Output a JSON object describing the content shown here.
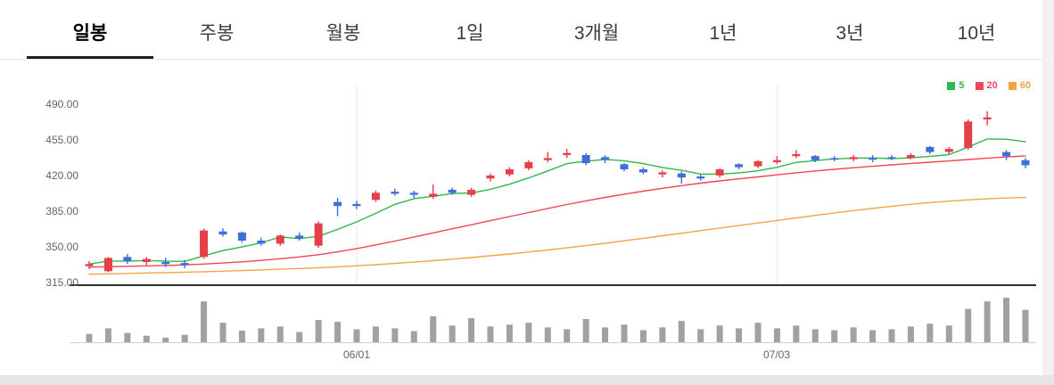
{
  "tabs": [
    {
      "label": "일봉",
      "active": true
    },
    {
      "label": "주봉",
      "active": false
    },
    {
      "label": "월봉",
      "active": false
    },
    {
      "label": "1일",
      "active": false
    },
    {
      "label": "3개월",
      "active": false
    },
    {
      "label": "1년",
      "active": false
    },
    {
      "label": "3년",
      "active": false
    },
    {
      "label": "10년",
      "active": false
    }
  ],
  "chart_data": {
    "type": "candlestick",
    "title": "Daily stock price candlestick chart with volume",
    "y_ticks": [
      "490.00",
      "455.00",
      "420.00",
      "385.00",
      "350.00",
      "315.00"
    ],
    "y_tick_values": [
      490,
      455,
      420,
      385,
      350,
      315
    ],
    "ylim": [
      315,
      510
    ],
    "x_labels": [
      {
        "label": "06/01",
        "index": 14
      },
      {
        "label": "07/03",
        "index": 36
      }
    ],
    "legend": [
      {
        "label": "5",
        "color": "#2db84c"
      },
      {
        "label": "20",
        "color": "#ef4656"
      },
      {
        "label": "60",
        "color": "#f2a445"
      }
    ],
    "colors": {
      "up": "#e5404a",
      "down": "#3e6fd9",
      "volume": "#a0a0a5",
      "grid": "#e9e9e9",
      "axis": "#2f2f2f",
      "baseline": "#cfcfcf"
    },
    "candles_format": [
      "open",
      "high",
      "low",
      "close"
    ],
    "candles": [
      [
        332,
        337,
        329,
        334
      ],
      [
        327,
        341,
        326,
        340
      ],
      [
        341,
        344,
        334,
        337
      ],
      [
        336,
        341,
        333,
        339
      ],
      [
        336,
        340,
        331,
        334
      ],
      [
        335,
        338,
        330,
        333
      ],
      [
        341,
        369,
        339,
        367
      ],
      [
        366,
        369,
        361,
        363
      ],
      [
        365,
        366,
        355,
        357
      ],
      [
        357,
        360,
        352,
        354
      ],
      [
        354,
        363,
        352,
        362
      ],
      [
        362,
        365,
        357,
        359
      ],
      [
        352,
        376,
        350,
        374
      ],
      [
        395,
        399,
        381,
        391
      ],
      [
        393,
        396,
        388,
        391
      ],
      [
        397,
        406,
        395,
        404
      ],
      [
        405,
        408,
        401,
        403
      ],
      [
        404,
        406,
        399,
        402
      ],
      [
        400,
        412,
        398,
        403
      ],
      [
        407,
        409,
        402,
        404
      ],
      [
        402,
        409,
        400,
        407
      ],
      [
        418,
        423,
        415,
        421
      ],
      [
        422,
        429,
        420,
        427
      ],
      [
        428,
        436,
        426,
        434
      ],
      [
        436,
        444,
        434,
        438
      ],
      [
        441,
        447,
        438,
        443
      ],
      [
        441,
        443,
        431,
        433
      ],
      [
        439,
        441,
        433,
        436
      ],
      [
        432,
        433,
        425,
        427
      ],
      [
        427,
        429,
        422,
        424
      ],
      [
        422,
        426,
        419,
        424
      ],
      [
        423,
        425,
        413,
        419
      ],
      [
        420,
        422,
        416,
        418
      ],
      [
        421,
        428,
        419,
        427
      ],
      [
        432,
        433,
        427,
        429
      ],
      [
        430,
        436,
        428,
        435
      ],
      [
        434,
        440,
        432,
        436
      ],
      [
        440,
        446,
        438,
        442
      ],
      [
        440,
        441,
        434,
        436
      ],
      [
        438,
        440,
        435,
        437
      ],
      [
        437,
        441,
        435,
        439
      ],
      [
        438,
        441,
        434,
        437
      ],
      [
        439,
        441,
        436,
        438
      ],
      [
        438,
        443,
        437,
        441
      ],
      [
        449,
        450,
        442,
        444
      ],
      [
        444,
        449,
        442,
        447
      ],
      [
        448,
        476,
        446,
        474
      ],
      [
        476,
        484,
        470,
        478
      ],
      [
        444,
        446,
        436,
        440
      ],
      [
        436,
        438,
        428,
        431
      ]
    ],
    "series": [
      {
        "name": "MA5",
        "color": "#2db84c",
        "values": [
          334,
          337,
          337,
          337.5,
          336.8,
          336.6,
          342,
          347.2,
          350.8,
          354.8,
          360.6,
          359,
          361.2,
          368,
          375.4,
          383.8,
          392.6,
          398.2,
          400.6,
          403.2,
          403.8,
          407.4,
          412.4,
          418.6,
          425.4,
          432.6,
          435,
          436.8,
          435.4,
          432.6,
          428.8,
          426,
          422.4,
          422.4,
          423.4,
          425.6,
          429,
          433.8,
          435.6,
          437.2,
          438,
          438.2,
          437.4,
          438.4,
          439.8,
          441.4,
          448.8,
          456.8,
          456.6,
          454
        ]
      },
      {
        "name": "MA20",
        "color": "#ef4656",
        "values": [
          331,
          331.4,
          331.8,
          332.2,
          332.6,
          333.2,
          334,
          335,
          336.2,
          337.6,
          339.2,
          341,
          343.2,
          346,
          349.2,
          352.8,
          356.6,
          360.6,
          364.6,
          368.6,
          372.6,
          376.6,
          380.6,
          384.6,
          388.6,
          392.4,
          396,
          399.4,
          402.6,
          405.6,
          408.4,
          411,
          413.4,
          415.6,
          417.6,
          419.6,
          421.6,
          423.6,
          425.4,
          427,
          428.6,
          430,
          431.4,
          432.8,
          434,
          435.2,
          436.6,
          438,
          439.2,
          440.2
        ]
      },
      {
        "name": "MA60",
        "color": "#f2a445",
        "values": [
          324,
          324.4,
          324.8,
          325.2,
          325.6,
          326,
          326.5,
          327,
          327.6,
          328.2,
          328.9,
          329.6,
          330.4,
          331.3,
          332.3,
          333.4,
          334.6,
          335.9,
          337.3,
          338.8,
          340.4,
          342.1,
          343.9,
          345.8,
          347.8,
          349.9,
          352.1,
          354.4,
          356.8,
          359.3,
          361.8,
          364.3,
          366.8,
          369.3,
          371.8,
          374.3,
          376.8,
          379.3,
          381.8,
          384.2,
          386.5,
          388.7,
          390.8,
          392.7,
          394.4,
          395.8,
          397,
          398,
          398.8,
          399.4
        ]
      }
    ],
    "volume": [
      18,
      30,
      20,
      14,
      10,
      16,
      88,
      42,
      25,
      30,
      34,
      22,
      48,
      44,
      28,
      34,
      30,
      24,
      56,
      36,
      52,
      34,
      38,
      42,
      32,
      28,
      50,
      32,
      38,
      26,
      32,
      46,
      28,
      36,
      30,
      42,
      30,
      36,
      28,
      26,
      32,
      26,
      28,
      34,
      40,
      36,
      72,
      88,
      96,
      70
    ]
  }
}
